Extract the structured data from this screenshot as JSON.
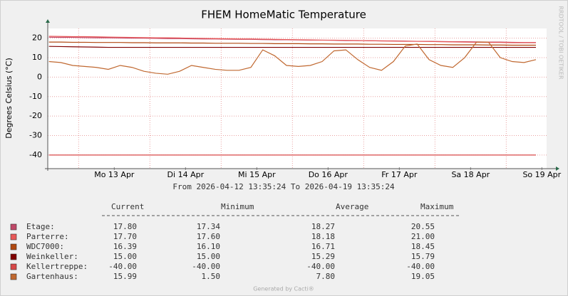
{
  "chart_data": {
    "type": "line",
    "title": "FHEM HomeMatic Temperature",
    "subtitle": "From 2026-04-12 13:35:24 To 2026-04-19 13:35:24",
    "y_label": "Degrees Celsius (°C)",
    "watermark": "RRDTOOL / TOBI OETIKER",
    "footer": "Generated by Cacti®",
    "xlim": [
      13.6,
      181.6
    ],
    "ylim": [
      -47,
      25
    ],
    "yticks": [
      20,
      10,
      0,
      -10,
      -20,
      -30,
      -40
    ],
    "xticks": [
      {
        "value": 36,
        "label": "Mo 13 Apr"
      },
      {
        "value": 60,
        "label": "Di 14 Apr"
      },
      {
        "value": 84,
        "label": "Mi 15 Apr"
      },
      {
        "value": 108,
        "label": "Do 16 Apr"
      },
      {
        "value": 132,
        "label": "Fr 17 Apr"
      },
      {
        "value": 156,
        "label": "Sa 18 Apr"
      },
      {
        "value": 180,
        "label": "So 19 Apr"
      }
    ],
    "xgrid": [
      24,
      48,
      72,
      96,
      120,
      144,
      168
    ],
    "grid": true,
    "x": [
      14,
      18,
      22,
      26,
      30,
      34,
      38,
      42,
      46,
      50,
      54,
      58,
      62,
      66,
      70,
      74,
      78,
      82,
      86,
      90,
      94,
      98,
      102,
      106,
      110,
      114,
      118,
      122,
      126,
      130,
      134,
      138,
      142,
      146,
      150,
      154,
      158,
      162,
      166,
      170,
      174,
      178
    ],
    "series": [
      {
        "name": "Etage:",
        "color": "#c04868",
        "values": [
          20.5,
          20.4,
          20.4,
          20.3,
          20.2,
          20.2,
          20.1,
          20.0,
          20.0,
          19.9,
          19.8,
          19.8,
          19.7,
          19.6,
          19.6,
          19.5,
          19.4,
          19.4,
          19.3,
          19.2,
          19.2,
          19.1,
          19.0,
          19.0,
          18.9,
          18.8,
          18.8,
          18.7,
          18.6,
          18.6,
          18.5,
          18.4,
          18.4,
          18.3,
          18.2,
          18.2,
          18.1,
          18.0,
          18.0,
          17.9,
          17.8,
          17.8
        ]
      },
      {
        "name": "Parterre:",
        "color": "#e85858",
        "values": [
          21.0,
          20.9,
          20.8,
          20.8,
          20.7,
          20.6,
          20.5,
          20.4,
          20.3,
          20.2,
          20.2,
          20.1,
          20.0,
          19.9,
          19.8,
          19.7,
          19.6,
          19.6,
          19.5,
          19.4,
          19.3,
          19.2,
          19.1,
          19.0,
          19.0,
          18.9,
          18.8,
          18.7,
          18.6,
          18.5,
          18.4,
          18.4,
          18.3,
          18.2,
          18.1,
          18.0,
          17.9,
          17.8,
          17.8,
          17.7,
          17.7,
          17.7
        ]
      },
      {
        "name": "WDC7000:",
        "color": "#b04810",
        "values": [
          18.0,
          18.0,
          17.9,
          17.9,
          17.8,
          17.8,
          17.8,
          17.7,
          17.7,
          17.6,
          17.6,
          17.6,
          17.5,
          17.5,
          17.4,
          17.4,
          17.4,
          17.3,
          17.3,
          17.2,
          17.2,
          17.2,
          17.1,
          17.1,
          17.0,
          17.0,
          17.0,
          16.9,
          16.9,
          16.8,
          16.8,
          16.8,
          16.7,
          16.7,
          16.6,
          16.6,
          16.6,
          16.5,
          16.5,
          16.4,
          16.4,
          16.4
        ]
      },
      {
        "name": "Weinkeller:",
        "color": "#800000",
        "values": [
          15.8,
          15.7,
          15.6,
          15.5,
          15.4,
          15.3,
          15.3,
          15.3,
          15.3,
          15.3,
          15.3,
          15.3,
          15.3,
          15.3,
          15.3,
          15.3,
          15.3,
          15.3,
          15.3,
          15.3,
          15.3,
          15.3,
          15.3,
          15.3,
          15.3,
          15.3,
          15.3,
          15.3,
          15.3,
          15.3,
          15.3,
          15.3,
          15.3,
          15.3,
          15.3,
          15.3,
          15.3,
          15.3,
          15.3,
          15.3,
          15.3,
          15.3
        ]
      },
      {
        "name": "Kellertreppe:",
        "color": "#d84848",
        "values": [
          -40,
          -40,
          -40,
          -40,
          -40,
          -40,
          -40,
          -40,
          -40,
          -40,
          -40,
          -40,
          -40,
          -40,
          -40,
          -40,
          -40,
          -40,
          -40,
          -40,
          -40,
          -40,
          -40,
          -40,
          -40,
          -40,
          -40,
          -40,
          -40,
          -40,
          -40,
          -40,
          -40,
          -40,
          -40,
          -40,
          -40,
          -40,
          -40,
          -40,
          -40,
          -40
        ]
      },
      {
        "name": "Gartenhaus:",
        "color": "#c06830",
        "values": [
          8,
          7.5,
          6,
          5.5,
          5,
          4,
          6,
          5,
          3,
          2,
          1.5,
          3,
          6,
          5,
          4,
          3.5,
          3.5,
          5,
          14,
          11,
          6,
          5.5,
          6,
          8,
          13.5,
          14,
          9,
          5,
          3.5,
          8,
          16,
          17,
          9,
          6,
          5,
          10,
          18,
          18,
          10,
          8,
          7.5,
          9
        ]
      }
    ],
    "legend_table": {
      "columns": [
        "Current",
        "Minimum",
        "Average",
        "Maximum"
      ],
      "rows": [
        [
          "17.80",
          "17.34",
          "18.27",
          "20.55"
        ],
        [
          "17.70",
          "17.60",
          "18.18",
          "21.00"
        ],
        [
          "16.39",
          "16.10",
          "16.71",
          "18.45"
        ],
        [
          "15.00",
          "15.00",
          "15.29",
          "15.79"
        ],
        [
          "-40.00",
          "-40.00",
          "-40.00",
          "-40.00"
        ],
        [
          "15.99",
          "1.50",
          "7.80",
          "19.05"
        ]
      ]
    }
  }
}
